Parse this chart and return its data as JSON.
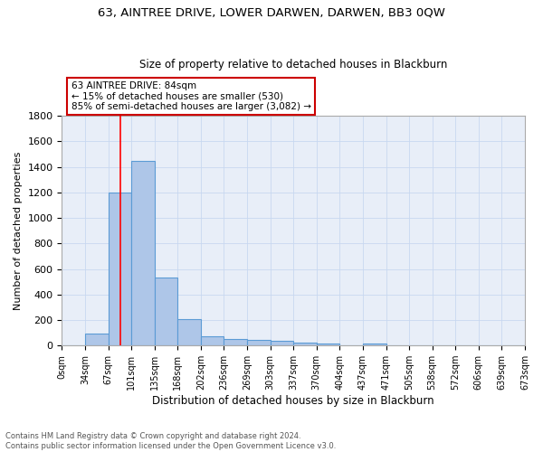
{
  "title": "63, AINTREE DRIVE, LOWER DARWEN, DARWEN, BB3 0QW",
  "subtitle": "Size of property relative to detached houses in Blackburn",
  "xlabel": "Distribution of detached houses by size in Blackburn",
  "ylabel": "Number of detached properties",
  "footnote": "Contains HM Land Registry data © Crown copyright and database right 2024.\nContains public sector information licensed under the Open Government Licence v3.0.",
  "bin_labels": [
    "0sqm",
    "34sqm",
    "67sqm",
    "101sqm",
    "135sqm",
    "168sqm",
    "202sqm",
    "236sqm",
    "269sqm",
    "303sqm",
    "337sqm",
    "370sqm",
    "404sqm",
    "437sqm",
    "471sqm",
    "505sqm",
    "538sqm",
    "572sqm",
    "606sqm",
    "639sqm",
    "673sqm"
  ],
  "bin_values": [
    0,
    95,
    1200,
    1450,
    530,
    205,
    70,
    50,
    45,
    35,
    25,
    15,
    5,
    15,
    0,
    0,
    0,
    0,
    0,
    0,
    0
  ],
  "bar_color": "#aec6e8",
  "bar_edge_color": "#5b9bd5",
  "bar_edge_width": 0.8,
  "grid_color": "#c8d8f0",
  "bg_color": "#e8eef8",
  "annotation_text": "63 AINTREE DRIVE: 84sqm\n← 15% of detached houses are smaller (530)\n85% of semi-detached houses are larger (3,082) →",
  "annotation_box_color": "white",
  "annotation_box_edge": "#cc0000",
  "red_line_x": 84,
  "ylim": [
    0,
    1800
  ],
  "yticks": [
    0,
    200,
    400,
    600,
    800,
    1000,
    1200,
    1400,
    1600,
    1800
  ],
  "bin_width": 33.5
}
